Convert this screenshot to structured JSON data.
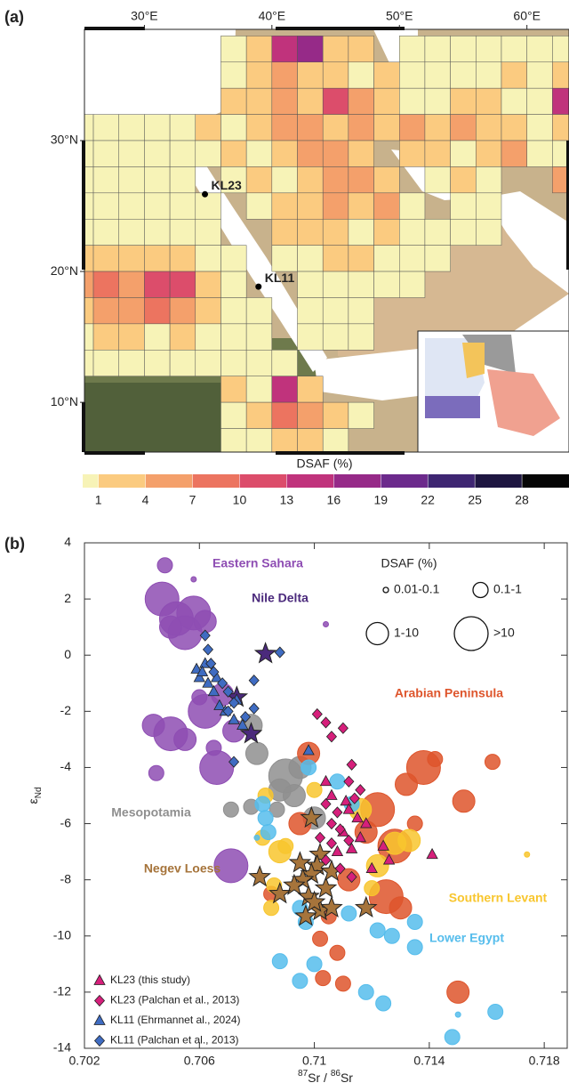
{
  "chart_data": [
    {
      "type": "map",
      "panel_label": "(a)",
      "xlim": [
        25.3,
        63.3
      ],
      "ylim": [
        6.2,
        38.5
      ],
      "xticks": [
        {
          "value": 30,
          "label": "30°E"
        },
        {
          "value": 40,
          "label": "40°E"
        },
        {
          "value": 50,
          "label": "50°E"
        },
        {
          "value": 60,
          "label": "60°E"
        }
      ],
      "yticks": [
        {
          "value": 10,
          "label": "10°N"
        },
        {
          "value": 20,
          "label": "20°N"
        },
        {
          "value": 30,
          "label": "30°N"
        }
      ],
      "grid_x": [
        25,
        27,
        29,
        31,
        33,
        35,
        37,
        39,
        41,
        43,
        45,
        47,
        49,
        51,
        53,
        55,
        57,
        59,
        61,
        63
      ],
      "grid_y": [
        37,
        35,
        33,
        31,
        29,
        27,
        25,
        23,
        21,
        19,
        17,
        15,
        13,
        11,
        9,
        7
      ],
      "values": [
        [
          null,
          null,
          null,
          null,
          null,
          null,
          0.5,
          2,
          14,
          17,
          2,
          2,
          null,
          0.5,
          0.5,
          0.5,
          0.5,
          0.5,
          0.5,
          0.5
        ],
        [
          null,
          null,
          null,
          null,
          null,
          null,
          0.5,
          2,
          5,
          2,
          2,
          0.5,
          2,
          0.5,
          0.5,
          0.5,
          0.5,
          2,
          0.5,
          2
        ],
        [
          null,
          null,
          null,
          null,
          null,
          null,
          2,
          2,
          5,
          2,
          11,
          5,
          2,
          0.5,
          0.5,
          2,
          2,
          0.5,
          0.5,
          14
        ],
        [
          0.5,
          0.5,
          0.5,
          0.5,
          0.5,
          2,
          0.5,
          2,
          5,
          5,
          2,
          5,
          2,
          5,
          2,
          5,
          2,
          2,
          0.5,
          2
        ],
        [
          0.5,
          0.5,
          0.5,
          0.5,
          0.5,
          0.5,
          2,
          0.5,
          2,
          5,
          5,
          2,
          null,
          2,
          2,
          0.5,
          2,
          5,
          0.5,
          0.5
        ],
        [
          0.5,
          0.5,
          0.5,
          0.5,
          0.5,
          null,
          0.5,
          2,
          0.5,
          2,
          5,
          5,
          2,
          null,
          0.5,
          2,
          0.5,
          null,
          null,
          5
        ],
        [
          0.5,
          0.5,
          0.5,
          0.5,
          0.5,
          0.5,
          null,
          0.5,
          2,
          2,
          5,
          2,
          5,
          0.5,
          null,
          0.5,
          0.5,
          null,
          null,
          null
        ],
        [
          0.5,
          0.5,
          0.5,
          0.5,
          0.5,
          0.5,
          null,
          null,
          2,
          2,
          2,
          0.5,
          2,
          0.5,
          0.5,
          0.5,
          0.5,
          null,
          null,
          null
        ],
        [
          2,
          2,
          2,
          2,
          2,
          0.5,
          0.5,
          null,
          0.5,
          0.5,
          2,
          2,
          0.5,
          0.5,
          0.5,
          null,
          null,
          null,
          null,
          null
        ],
        [
          5,
          8,
          5,
          11,
          11,
          2,
          0.5,
          null,
          null,
          0.5,
          0.5,
          0.5,
          0.5,
          0.5,
          null,
          null,
          null,
          null,
          null,
          null
        ],
        [
          2,
          5,
          5,
          8,
          5,
          2,
          0.5,
          0.5,
          null,
          0.5,
          0.5,
          0.5,
          null,
          null,
          null,
          null,
          null,
          null,
          null,
          null
        ],
        [
          0.5,
          2,
          2,
          0.5,
          2,
          0.5,
          0.5,
          0.5,
          null,
          0.5,
          0.5,
          0.5,
          null,
          null,
          null,
          null,
          null,
          null,
          null,
          null
        ],
        [
          0.5,
          0.5,
          0.5,
          0.5,
          0.5,
          0.5,
          0.5,
          0.5,
          0.5,
          null,
          null,
          null,
          null,
          null,
          null,
          null,
          null,
          null,
          null,
          null
        ],
        [
          null,
          null,
          null,
          null,
          null,
          null,
          2,
          0.5,
          14,
          2,
          null,
          null,
          null,
          null,
          null,
          null,
          null,
          null,
          null,
          null
        ],
        [
          null,
          null,
          null,
          null,
          null,
          null,
          0.5,
          2,
          8,
          5,
          2,
          0.5,
          null,
          null,
          null,
          null,
          null,
          null,
          null,
          null
        ],
        [
          null,
          null,
          null,
          null,
          null,
          null,
          0.5,
          0.5,
          2,
          2,
          0.5,
          null,
          null,
          null,
          null,
          null,
          null,
          null,
          null,
          null
        ]
      ],
      "sites": [
        {
          "name": "KL23",
          "x": 34.75,
          "y": 25.9
        },
        {
          "name": "KL11",
          "x": 38.95,
          "y": 18.84
        }
      ],
      "colorbar": {
        "title": "DSAF (%)",
        "lim": [
          0,
          31
        ],
        "ticks": [
          1,
          4,
          7,
          10,
          13,
          16,
          19,
          22,
          25,
          28
        ],
        "colors": [
          "#f7f3b7",
          "#fbcb80",
          "#f4a06b",
          "#ec7460",
          "#dc4d6b",
          "#c0337c",
          "#962a88",
          "#6c2a8c",
          "#3e2672",
          "#1e1641",
          "#060606"
        ]
      }
    },
    {
      "type": "scatter",
      "panel_label": "(b)",
      "xlim": [
        0.702,
        0.7188
      ],
      "ylim": [
        -14,
        4
      ],
      "xticks": [
        0.702,
        0.706,
        0.71,
        0.714,
        0.718
      ],
      "yticks": [
        -14,
        -12,
        -10,
        -8,
        -6,
        -4,
        -2,
        0,
        2,
        4
      ],
      "x_label": {
        "sup1": "87",
        "mid": "Sr / ",
        "sup2": "86",
        "end": "Sr"
      },
      "y_label": {
        "symbol": "ε",
        "sub": "Nd"
      },
      "size_legend": {
        "title": "DSAF (%)",
        "classes": [
          "0.01-0.1",
          "0.1-1",
          "1-10",
          ">10"
        ]
      },
      "series": [
        {
          "name": "Eastern Sahara",
          "color": "#8e4db3",
          "marker": "circle",
          "legend": false,
          "x": [
            0.7048,
            0.7047,
            0.7052,
            0.7058,
            0.7055,
            0.7062,
            0.705,
            0.7044,
            0.705,
            0.7055,
            0.7045,
            0.7062,
            0.7065,
            0.7066,
            0.7068,
            0.7072,
            0.7071,
            0.7104,
            0.7058,
            0.706
          ],
          "y": [
            3.2,
            2.0,
            1.3,
            1.5,
            0.8,
            1.2,
            1.0,
            -2.5,
            -2.8,
            -3.0,
            -4.2,
            -2.0,
            -3.3,
            -4.0,
            -1.4,
            -2.7,
            -7.5,
            1.1,
            2.7,
            -1.5
          ],
          "size_class": [
            1,
            3,
            3,
            3,
            3,
            2,
            2,
            2,
            3,
            2,
            1,
            3,
            1,
            3,
            2,
            2,
            3,
            0,
            0,
            1
          ]
        },
        {
          "name": "Mesopotamia",
          "color": "#8f8f8f",
          "marker": "circle",
          "legend": false,
          "x": [
            0.7078,
            0.708,
            0.709,
            0.7093,
            0.7087,
            0.7071,
            0.7078,
            0.7095,
            0.71,
            0.7088
          ],
          "y": [
            -2.5,
            -3.5,
            -4.3,
            -5.0,
            -5.5,
            -5.5,
            -5.4,
            -4.0,
            -5.8,
            -4.8
          ],
          "size_class": [
            2,
            2,
            3,
            2,
            1,
            1,
            1,
            2,
            2,
            2
          ]
        },
        {
          "name": "Arabian Peninsula",
          "color": "#de552c",
          "marker": "circle",
          "legend": false,
          "x": [
            0.7098,
            0.7122,
            0.7132,
            0.7138,
            0.7142,
            0.7152,
            0.7162,
            0.7128,
            0.7125,
            0.713,
            0.7105,
            0.7102,
            0.7108,
            0.711,
            0.7103,
            0.715,
            0.7135,
            0.7095,
            0.7085,
            0.7112,
            0.7118
          ],
          "y": [
            -3.5,
            -5.5,
            -4.6,
            -4.0,
            -3.7,
            -5.2,
            -3.8,
            -6.8,
            -8.6,
            -9.0,
            -9.3,
            -10.1,
            -10.6,
            -11.7,
            -11.5,
            -12.0,
            -6.0,
            -6.0,
            -8.5,
            -8.0,
            -6.3
          ],
          "size_class": [
            2,
            3,
            2,
            3,
            1,
            2,
            1,
            3,
            3,
            2,
            1,
            1,
            1,
            1,
            1,
            2,
            1,
            2,
            1,
            2,
            2
          ]
        },
        {
          "name": "Southern Levant",
          "color": "#f8c62e",
          "marker": "circle",
          "legend": false,
          "x": [
            0.7083,
            0.7082,
            0.7088,
            0.7086,
            0.7085,
            0.7116,
            0.7122,
            0.7128,
            0.7133,
            0.7174,
            0.712,
            0.71,
            0.709
          ],
          "y": [
            -5.0,
            -6.5,
            -7.0,
            -8.2,
            -9.0,
            -5.5,
            -7.5,
            -6.7,
            -6.6,
            -7.1,
            -8.3,
            -4.8,
            -6.8
          ],
          "size_class": [
            1,
            1,
            2,
            1,
            1,
            2,
            2,
            2,
            2,
            0,
            1,
            1,
            1
          ]
        },
        {
          "name": "Lower Egypt",
          "color": "#56bdec",
          "marker": "circle",
          "legend": false,
          "x": [
            0.7098,
            0.7082,
            0.7083,
            0.7084,
            0.7095,
            0.7097,
            0.7108,
            0.7113,
            0.7112,
            0.7122,
            0.7135,
            0.7127,
            0.7088,
            0.7095,
            0.71,
            0.7124,
            0.7118,
            0.7135,
            0.7148,
            0.7163,
            0.715,
            0.708
          ],
          "y": [
            -4.0,
            -5.3,
            -5.8,
            -6.3,
            -9.0,
            -9.5,
            -4.5,
            -5.3,
            -9.2,
            -9.8,
            -9.5,
            -10.0,
            -10.9,
            -11.6,
            -11.0,
            -12.4,
            -12.0,
            -10.4,
            -13.6,
            -12.7,
            -12.8,
            -6.5
          ],
          "size_class": [
            1,
            1,
            1,
            1,
            1,
            1,
            1,
            1,
            1,
            1,
            1,
            1,
            1,
            1,
            1,
            1,
            1,
            1,
            1,
            1,
            0,
            0
          ]
        },
        {
          "name": "Nile Delta",
          "color": "#4b2a7c",
          "marker": "star",
          "legend": false,
          "x": [
            0.7083,
            0.7073,
            0.7078
          ],
          "y": [
            0.05,
            -1.5,
            -2.8
          ]
        },
        {
          "name": "Negev Loess",
          "color": "#a6743b",
          "marker": "star",
          "legend": false,
          "x": [
            0.7099,
            0.7102,
            0.7101,
            0.7099,
            0.7096,
            0.7104,
            0.7098,
            0.7102,
            0.7106,
            0.7097,
            0.7093,
            0.7081,
            0.7088,
            0.7118,
            0.71,
            0.7106,
            0.7095
          ],
          "y": [
            -5.8,
            -7.1,
            -7.5,
            -7.8,
            -8.0,
            -8.3,
            -8.6,
            -9.1,
            -9.0,
            -9.3,
            -8.2,
            -7.9,
            -8.5,
            -9.0,
            -8.8,
            -7.7,
            -7.4
          ]
        },
        {
          "name": "KL23 (this study)",
          "color": "#d61f7b",
          "marker": "triangle",
          "legend": true,
          "x": [
            0.7106,
            0.7111,
            0.7115,
            0.7118,
            0.711,
            0.7113,
            0.7124,
            0.7126,
            0.712,
            0.7108,
            0.7141,
            0.7104,
            0.7116,
            0.7112
          ],
          "y": [
            -5.0,
            -5.2,
            -5.8,
            -6.0,
            -6.3,
            -6.9,
            -6.8,
            -7.3,
            -7.6,
            -7.0,
            -7.1,
            -4.5,
            -6.5,
            -5.5
          ]
        },
        {
          "name": "KL23 (Palchan et al., 2013)",
          "color": "#d61f7b",
          "marker": "diamond",
          "legend": true,
          "x": [
            0.7101,
            0.7104,
            0.7106,
            0.711,
            0.7113,
            0.7112,
            0.7108,
            0.7106,
            0.7109,
            0.7112,
            0.7106,
            0.7104,
            0.7109,
            0.7113,
            0.7114,
            0.7116,
            0.7104,
            0.7102
          ],
          "y": [
            -2.1,
            -2.4,
            -2.9,
            -2.6,
            -3.9,
            -4.5,
            -5.6,
            -6.0,
            -6.2,
            -6.6,
            -6.7,
            -7.3,
            -7.6,
            -7.9,
            -5.1,
            -4.8,
            -5.3,
            -6.5
          ]
        },
        {
          "name": "KL11 (Ehrmannet al., 2024)",
          "color": "#3f6cc2",
          "marker": "triangle",
          "legend": true,
          "x": [
            0.7059,
            0.7062,
            0.706,
            0.7063,
            0.7065,
            0.7067,
            0.7069,
            0.7072,
            0.7075,
            0.7073,
            0.7066,
            0.7098,
            0.7061
          ],
          "y": [
            -0.5,
            -0.3,
            -0.8,
            -1.0,
            -1.3,
            -1.8,
            -2.0,
            -2.3,
            -2.5,
            -1.6,
            -0.8,
            -3.4,
            -0.6
          ]
        },
        {
          "name": "KL11 (Palchan et al., 2013)",
          "color": "#3f6cc2",
          "marker": "diamond",
          "legend": true,
          "x": [
            0.7062,
            0.7063,
            0.7064,
            0.7065,
            0.7068,
            0.707,
            0.707,
            0.7072,
            0.7076,
            0.7079,
            0.7088,
            0.7079,
            0.7072
          ],
          "y": [
            0.7,
            0.2,
            -0.3,
            -0.6,
            -1.0,
            -1.3,
            -2.0,
            -1.7,
            -2.2,
            -1.9,
            0.1,
            -0.9,
            -3.8
          ]
        }
      ]
    }
  ]
}
